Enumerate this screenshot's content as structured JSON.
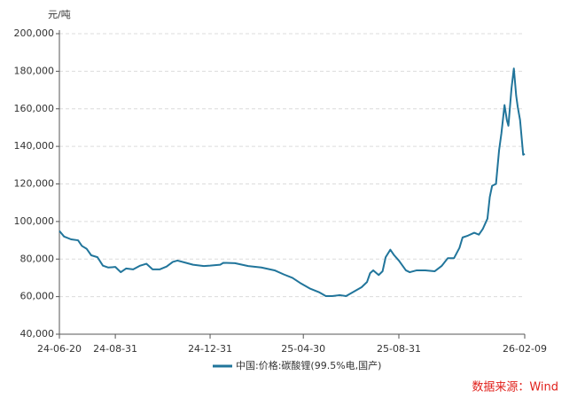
{
  "chart_data": {
    "type": "line",
    "y_unit": "元/吨",
    "source": "数据来源：Wind",
    "x": [
      "24-06-20",
      "24-06-26",
      "24-07-05",
      "24-07-14",
      "24-07-19",
      "24-07-25",
      "24-07-31",
      "24-08-08",
      "24-08-15",
      "24-08-22",
      "24-08-31",
      "24-09-07",
      "24-09-14",
      "24-09-23",
      "24-10-02",
      "24-10-10",
      "24-10-18",
      "24-10-27",
      "24-11-05",
      "24-11-13",
      "24-11-19",
      "24-11-30",
      "24-12-09",
      "24-12-23",
      "24-12-31",
      "25-01-13",
      "25-01-17",
      "25-02-01",
      "25-02-18",
      "25-03-07",
      "25-03-24",
      "25-04-05",
      "25-04-16",
      "25-04-27",
      "25-05-09",
      "25-05-20",
      "25-05-29",
      "25-06-06",
      "25-06-16",
      "25-06-24",
      "25-07-03",
      "25-07-14",
      "25-07-21",
      "25-07-25",
      "25-07-29",
      "25-08-05",
      "25-08-10",
      "25-08-14",
      "25-08-20",
      "25-08-25",
      "25-08-31",
      "25-09-09",
      "25-09-14",
      "25-09-23",
      "25-10-04",
      "25-10-16",
      "25-10-25",
      "25-11-02",
      "25-11-10",
      "25-11-17",
      "25-11-21",
      "25-11-28",
      "25-12-06",
      "25-12-12",
      "25-12-17",
      "25-12-23",
      "25-12-26",
      "25-12-29",
      "26-01-03",
      "26-01-07",
      "26-01-10",
      "26-01-14",
      "26-01-17",
      "26-01-19",
      "26-01-23",
      "26-01-26",
      "26-01-29",
      "26-01-31",
      "26-02-03",
      "26-02-07",
      "26-02-09"
    ],
    "series": [
      {
        "name": "中国:价格:碳酸锂(99.5%电,国产)",
        "color": "#21759b",
        "values": [
          95000,
          92000,
          90500,
          90000,
          87000,
          85500,
          82000,
          81000,
          76500,
          75500,
          75800,
          73000,
          75000,
          74500,
          76500,
          77500,
          74500,
          74500,
          76000,
          78500,
          79200,
          78000,
          77000,
          76300,
          76500,
          77000,
          78000,
          77800,
          76300,
          75500,
          74000,
          71800,
          70000,
          67000,
          64200,
          62400,
          60300,
          60300,
          60800,
          60300,
          62400,
          65000,
          67800,
          72500,
          74000,
          71500,
          73500,
          81000,
          85000,
          82000,
          79200,
          74000,
          73000,
          74000,
          74000,
          73500,
          76300,
          80500,
          80500,
          86000,
          91500,
          92500,
          94000,
          93000,
          96000,
          101500,
          113000,
          119000,
          120000,
          138000,
          147000,
          162000,
          154000,
          151000,
          171000,
          181500,
          167000,
          161000,
          154000,
          135500,
          136000
        ]
      }
    ],
    "xlim": [
      "24-06-20",
      "26-02-09"
    ],
    "xticks": [
      "24-06-20",
      "24-08-31",
      "24-12-31",
      "25-04-30",
      "25-08-31",
      "26-02-09"
    ],
    "ylim": [
      40000,
      200000
    ],
    "yticks": [
      {
        "value": 40000,
        "label": "40,000"
      },
      {
        "value": 60000,
        "label": "60,000"
      },
      {
        "value": 80000,
        "label": "80,000"
      },
      {
        "value": 100000,
        "label": "100,000"
      },
      {
        "value": 120000,
        "label": "120,000"
      },
      {
        "value": 140000,
        "label": "140,000"
      },
      {
        "value": 160000,
        "label": "160,000"
      },
      {
        "value": 180000,
        "label": "180,000"
      },
      {
        "value": 200000,
        "label": "200,000"
      }
    ],
    "grid": true
  }
}
